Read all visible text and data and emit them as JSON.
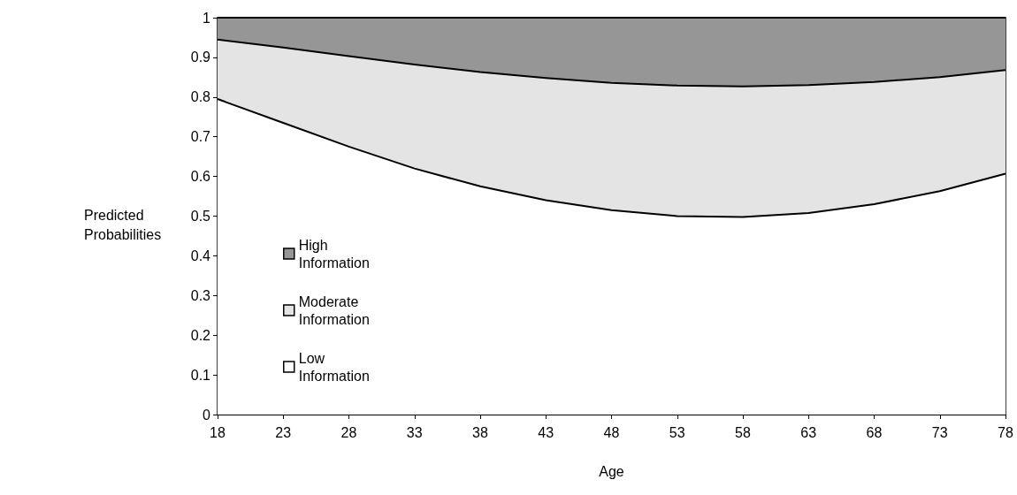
{
  "chart_data": {
    "type": "area",
    "stacked": true,
    "xlabel": "Age",
    "ylabel": "Predicted Probabilities",
    "x": [
      18,
      23,
      28,
      33,
      38,
      43,
      48,
      53,
      58,
      63,
      68,
      73,
      78
    ],
    "xlim": [
      18,
      78
    ],
    "xticks": [
      18,
      23,
      28,
      33,
      38,
      43,
      48,
      53,
      58,
      63,
      68,
      73,
      78
    ],
    "ylim": [
      0,
      1
    ],
    "yticks": [
      0,
      0.1,
      0.2,
      0.3,
      0.4,
      0.5,
      0.6,
      0.7,
      0.8,
      0.9,
      1
    ],
    "grid": false,
    "legend": "left",
    "marker": "none",
    "line_style": "solid",
    "series": [
      {
        "name": "Low Information",
        "color": "#ffffff",
        "values": [
          0.795,
          0.735,
          0.675,
          0.62,
          0.575,
          0.54,
          0.515,
          0.5,
          0.498,
          0.508,
          0.53,
          0.563,
          0.607
        ]
      },
      {
        "name": "Moderate Information",
        "color": "#e4e4e4",
        "values": [
          0.15,
          0.19,
          0.228,
          0.262,
          0.288,
          0.308,
          0.321,
          0.329,
          0.329,
          0.322,
          0.308,
          0.287,
          0.261
        ]
      },
      {
        "name": "High Information",
        "color": "#969696",
        "values": [
          0.055,
          0.075,
          0.097,
          0.118,
          0.137,
          0.152,
          0.164,
          0.171,
          0.173,
          0.17,
          0.162,
          0.15,
          0.132
        ]
      }
    ]
  }
}
